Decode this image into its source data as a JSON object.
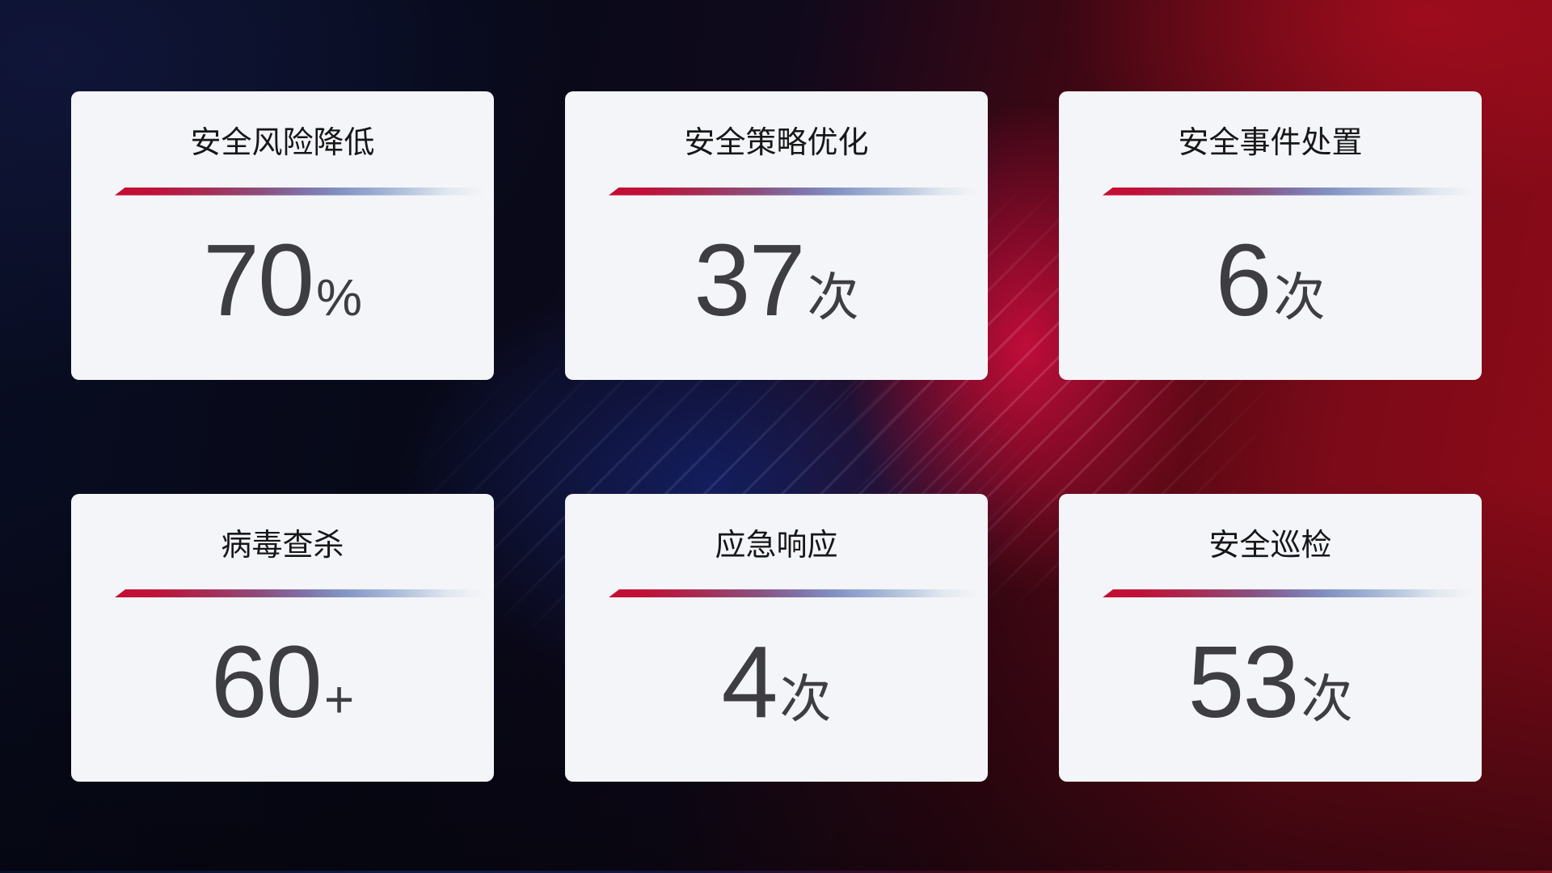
{
  "cards": [
    {
      "title": "安全风险降低",
      "value": "70",
      "unit": "%"
    },
    {
      "title": "安全策略优化",
      "value": "37",
      "unit": "次"
    },
    {
      "title": "安全事件处置",
      "value": "6",
      "unit": "次"
    },
    {
      "title": "病毒查杀",
      "value": "60",
      "unit": "+"
    },
    {
      "title": "应急响应",
      "value": "4",
      "unit": "次"
    },
    {
      "title": "安全巡检",
      "value": "53",
      "unit": "次"
    }
  ],
  "colors": {
    "card_background": "#f4f5f8",
    "title_text": "#17171a",
    "value_text": "#3d3d42",
    "divider_red": "#c50d31",
    "divider_blue": "#8495c5",
    "background_navy": "#090d22",
    "background_red": "#8e0b18",
    "background_crimson_glow": "#d60e40"
  }
}
